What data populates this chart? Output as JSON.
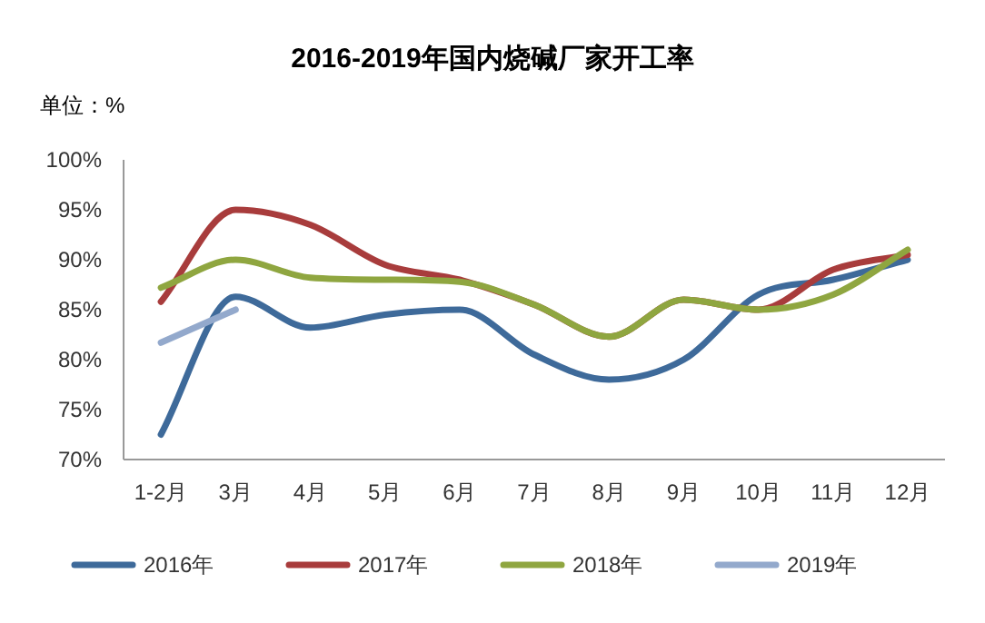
{
  "chart_data": {
    "type": "line",
    "title": "2016-2019年国内烧碱厂家开工率",
    "annotations": [
      "单位：%"
    ],
    "categories": [
      "1-2月",
      "3月",
      "4月",
      "5月",
      "6月",
      "7月",
      "8月",
      "9月",
      "10月",
      "11月",
      "12月"
    ],
    "series": [
      {
        "name": "2016年",
        "color": "#3e6a9a",
        "values": [
          72.5,
          86.3,
          83.2,
          84.5,
          85.0,
          80.5,
          78.0,
          80.0,
          86.5,
          88.0,
          90.0
        ]
      },
      {
        "name": "2017年",
        "color": "#a83c3c",
        "values": [
          85.8,
          95.0,
          93.5,
          89.5,
          88.0,
          85.5,
          82.3,
          86.0,
          85.0,
          89.0,
          90.5
        ]
      },
      {
        "name": "2018年",
        "color": "#8fa640",
        "values": [
          87.2,
          90.0,
          88.2,
          88.0,
          87.8,
          85.5,
          82.3,
          86.0,
          85.0,
          86.5,
          91.0
        ]
      },
      {
        "name": "2019年",
        "color": "#93a9cc",
        "values": [
          81.7,
          85.0,
          null,
          null,
          null,
          null,
          null,
          null,
          null,
          null,
          null
        ]
      }
    ],
    "ylim": [
      70,
      100
    ],
    "yticks": [
      {
        "value": 70,
        "label": "70%"
      },
      {
        "value": 75,
        "label": "75%"
      },
      {
        "value": 80,
        "label": "80%"
      },
      {
        "value": 85,
        "label": "85%"
      },
      {
        "value": 90,
        "label": "90%"
      },
      {
        "value": 95,
        "label": "95%"
      },
      {
        "value": 100,
        "label": "100%"
      }
    ],
    "grid": false,
    "legend": "bottom",
    "marker": "none",
    "line_style": "solid"
  }
}
